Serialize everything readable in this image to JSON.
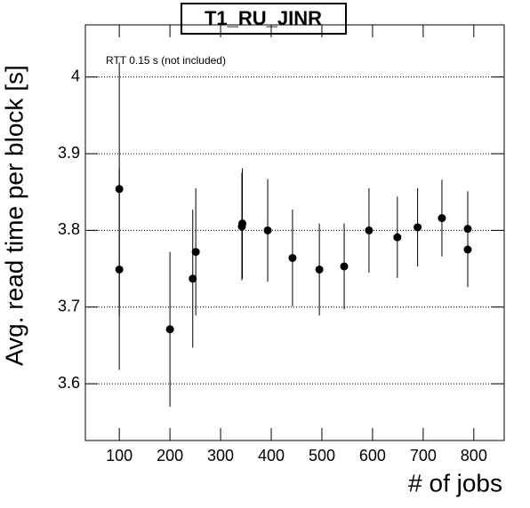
{
  "chart_data": {
    "type": "scatter",
    "title": "T1_RU_JINR",
    "annotation": "RTT 0.15 s (not included)",
    "x_label": "# of jobs",
    "y_label": "Avg. read time per block [s]",
    "x": [
      100,
      100,
      200,
      245,
      251,
      342,
      343,
      393,
      442,
      495,
      544,
      593,
      649,
      689,
      737,
      788,
      788
    ],
    "values": [
      3.854,
      3.749,
      3.671,
      3.737,
      3.772,
      3.805,
      3.809,
      3.8,
      3.764,
      3.749,
      3.753,
      3.8,
      3.791,
      3.804,
      3.816,
      3.802,
      3.775
    ],
    "errors": [
      0.165,
      0.131,
      0.101,
      0.09,
      0.083,
      0.07,
      0.072,
      0.067,
      0.063,
      0.06,
      0.056,
      0.055,
      0.053,
      0.051,
      0.05,
      0.049,
      0.049
    ],
    "color": "#000000",
    "xlim": [
      33,
      860
    ],
    "ylim": [
      3.526,
      4.068
    ],
    "xticks": [
      100,
      200,
      300,
      400,
      500,
      600,
      700,
      800
    ],
    "yticks": [
      3.6,
      3.7,
      3.8,
      3.9,
      4
    ],
    "grid": "y"
  }
}
